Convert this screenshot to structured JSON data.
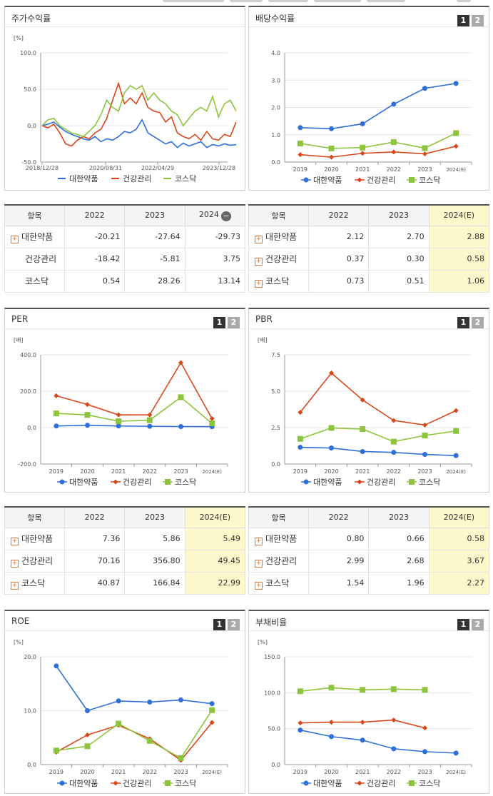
{
  "colors": {
    "daehan": "#2e6fd9",
    "health": "#d9461a",
    "kosdaq": "#8cc43c"
  },
  "series_names": [
    "대한약품",
    "건강관리",
    "코스닥"
  ],
  "panels": {
    "stock": {
      "title": "주가수익률"
    },
    "dividend": {
      "title": "배당수익률",
      "btn1": "1",
      "btn2": "2"
    },
    "per": {
      "title": "PER",
      "btn1": "1",
      "btn2": "2"
    },
    "pbr": {
      "title": "PBR",
      "btn1": "1",
      "btn2": "2"
    },
    "roe": {
      "title": "ROE",
      "btn1": "1",
      "btn2": "2"
    },
    "debt": {
      "title": "부채비율",
      "btn1": "1",
      "btn2": "2"
    }
  },
  "tables": {
    "stock": {
      "head": [
        "항목",
        "2022",
        "2023",
        "2024"
      ],
      "minus": "−",
      "rows": [
        {
          "name": "대한약품",
          "vals": [
            "-20.21",
            "-27.64",
            "-29.73"
          ]
        },
        {
          "name": "건강관리",
          "vals": [
            "-18.42",
            "-5.81",
            "3.75"
          ]
        },
        {
          "name": "코스닥",
          "vals": [
            "0.54",
            "28.26",
            "13.14"
          ]
        }
      ]
    },
    "dividend": {
      "head": [
        "항목",
        "2022",
        "2023",
        "2024(E)"
      ],
      "rows": [
        {
          "name": "대한약품",
          "vals": [
            "2.12",
            "2.70",
            "2.88"
          ]
        },
        {
          "name": "건강관리",
          "vals": [
            "0.37",
            "0.30",
            "0.58"
          ]
        },
        {
          "name": "코스닥",
          "vals": [
            "0.73",
            "0.51",
            "1.06"
          ]
        }
      ]
    },
    "per": {
      "head": [
        "항목",
        "2022",
        "2023",
        "2024(E)"
      ],
      "rows": [
        {
          "name": "대한약품",
          "vals": [
            "7.36",
            "5.86",
            "5.49"
          ]
        },
        {
          "name": "건강관리",
          "vals": [
            "70.16",
            "356.80",
            "49.45"
          ]
        },
        {
          "name": "코스닥",
          "vals": [
            "40.87",
            "166.84",
            "22.99"
          ]
        }
      ]
    },
    "pbr": {
      "head": [
        "항목",
        "2022",
        "2023",
        "2024(E)"
      ],
      "rows": [
        {
          "name": "대한약품",
          "vals": [
            "0.80",
            "0.66",
            "0.58"
          ]
        },
        {
          "name": "건강관리",
          "vals": [
            "2.99",
            "2.68",
            "3.67"
          ]
        },
        {
          "name": "코스닥",
          "vals": [
            "1.54",
            "1.96",
            "2.27"
          ]
        }
      ]
    }
  },
  "chart_data": [
    {
      "id": "stock",
      "type": "line",
      "title": "주가수익률",
      "unit": "[%]",
      "ylim": [
        -50,
        100
      ],
      "yticks": [
        "100.0",
        "50.0",
        "0.0",
        "-50.0"
      ],
      "x_labels": [
        "2018/12/28",
        "2020/08/31",
        "2022/04/29",
        "2023/12/28"
      ],
      "series": [
        {
          "name": "대한약품",
          "values": [
            0,
            2,
            5,
            -2,
            -8,
            -12,
            -15,
            -18,
            -20,
            -15,
            -22,
            -18,
            -20,
            -15,
            -8,
            -10,
            -5,
            8,
            -10,
            -15,
            -20,
            -25,
            -22,
            -30,
            -24,
            -28,
            -25,
            -22,
            -30,
            -26,
            -28,
            -25,
            -27,
            -26
          ]
        },
        {
          "name": "건강관리",
          "values": [
            0,
            -3,
            2,
            -10,
            -25,
            -28,
            -20,
            -15,
            -18,
            -10,
            -5,
            10,
            35,
            58,
            30,
            38,
            30,
            45,
            25,
            20,
            18,
            5,
            12,
            -10,
            -15,
            -18,
            -12,
            -20,
            -8,
            -18,
            -20,
            -12,
            -15,
            5
          ]
        },
        {
          "name": "코스닥",
          "values": [
            0,
            8,
            10,
            0,
            -5,
            -10,
            -12,
            -15,
            -8,
            0,
            15,
            35,
            25,
            20,
            45,
            55,
            50,
            55,
            35,
            45,
            35,
            30,
            20,
            15,
            0,
            10,
            20,
            25,
            20,
            40,
            12,
            30,
            35,
            20
          ]
        }
      ]
    },
    {
      "id": "dividend",
      "type": "line",
      "title": "배당수익률",
      "categories": [
        "2019",
        "2020",
        "2021",
        "2022",
        "2023",
        "2024(E)"
      ],
      "ylim": [
        0,
        4
      ],
      "yticks": [
        "4.0",
        "3.0",
        "2.0",
        "1.0",
        "0.0"
      ],
      "series": [
        {
          "name": "대한약품",
          "values": [
            1.26,
            1.22,
            1.4,
            2.12,
            2.7,
            2.88
          ]
        },
        {
          "name": "건강관리",
          "values": [
            0.27,
            0.18,
            0.32,
            0.37,
            0.3,
            0.58
          ]
        },
        {
          "name": "코스닥",
          "values": [
            0.68,
            0.5,
            0.53,
            0.73,
            0.51,
            1.06
          ]
        }
      ]
    },
    {
      "id": "per",
      "type": "line",
      "title": "PER",
      "unit": "[배]",
      "categories": [
        "2019",
        "2020",
        "2021",
        "2022",
        "2023",
        "2024(E)"
      ],
      "ylim": [
        -200,
        400
      ],
      "yticks": [
        "400.0",
        "200.0",
        "0.0",
        "-200.0"
      ],
      "series": [
        {
          "name": "대한약품",
          "values": [
            9,
            13,
            9,
            7.36,
            5.86,
            5.49
          ]
        },
        {
          "name": "건강관리",
          "values": [
            175,
            127,
            70,
            70.16,
            356.8,
            49.45
          ]
        },
        {
          "name": "코스닥",
          "values": [
            78,
            70,
            35,
            40.87,
            166.84,
            22.99
          ]
        }
      ]
    },
    {
      "id": "pbr",
      "type": "line",
      "title": "PBR",
      "unit": "[배]",
      "categories": [
        "2019",
        "2020",
        "2021",
        "2022",
        "2023",
        "2024(E)"
      ],
      "ylim": [
        0,
        7.5
      ],
      "yticks": [
        "7.5",
        "5.0",
        "2.5",
        "0.0"
      ],
      "series": [
        {
          "name": "대한약품",
          "values": [
            1.15,
            1.1,
            0.86,
            0.8,
            0.66,
            0.58
          ]
        },
        {
          "name": "건강관리",
          "values": [
            3.55,
            6.25,
            4.4,
            2.99,
            2.68,
            3.67
          ]
        },
        {
          "name": "코스닥",
          "values": [
            1.73,
            2.48,
            2.4,
            1.54,
            1.96,
            2.27
          ]
        }
      ]
    },
    {
      "id": "roe",
      "type": "line",
      "title": "ROE",
      "unit": "[%]",
      "categories": [
        "2019",
        "2020",
        "2021",
        "2022",
        "2023",
        "2024(E)"
      ],
      "ylim": [
        0,
        20
      ],
      "yticks": [
        "20.0",
        "10.0",
        "0.0"
      ],
      "series": [
        {
          "name": "대한약품",
          "values": [
            18.3,
            10.0,
            11.8,
            11.6,
            12.0,
            11.3
          ]
        },
        {
          "name": "건강관리",
          "values": [
            2.3,
            5.5,
            7.3,
            4.8,
            0.8,
            7.8
          ]
        },
        {
          "name": "코스닥",
          "values": [
            2.6,
            3.4,
            7.6,
            4.4,
            1.2,
            10.1
          ]
        }
      ]
    },
    {
      "id": "debt",
      "type": "line",
      "title": "부채비율",
      "unit": "[%]",
      "categories": [
        "2019",
        "2020",
        "2021",
        "2022",
        "2023",
        "2024(E)"
      ],
      "ylim": [
        0,
        150
      ],
      "yticks": [
        "150.0",
        "100.0",
        "50.0",
        "0.0"
      ],
      "series": [
        {
          "name": "대한약품",
          "values": [
            48,
            39,
            34,
            22,
            18,
            16
          ]
        },
        {
          "name": "건강관리",
          "values": [
            58,
            59,
            59,
            62,
            51,
            null
          ]
        },
        {
          "name": "코스닥",
          "values": [
            102,
            107,
            104,
            105,
            104,
            null
          ]
        }
      ]
    }
  ]
}
